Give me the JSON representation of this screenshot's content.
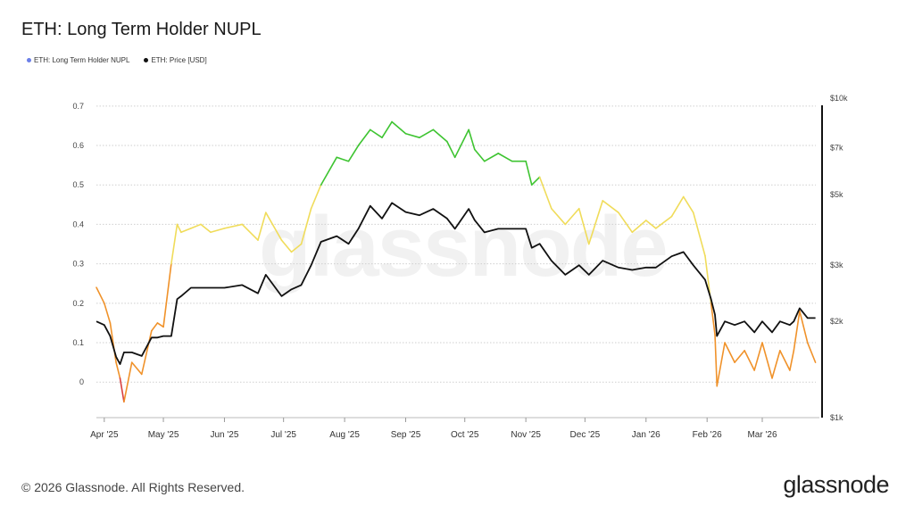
{
  "title": "ETH: Long Term Holder NUPL",
  "legend": {
    "nupl_label": "ETH: Long Term Holder NUPL",
    "price_label": "ETH: Price [USD]",
    "nupl_color": "#6b7fe8",
    "price_color": "#111111"
  },
  "watermark": "glassnode",
  "footer": "© 2026 Glassnode. All Rights Reserved.",
  "brand": "glassnode",
  "chart_data": {
    "type": "line",
    "title": "ETH: Long Term Holder NUPL",
    "x_ticks": [
      "Apr '25",
      "May '25",
      "Jun '25",
      "Jul '25",
      "Aug '25",
      "Sep '25",
      "Oct '25",
      "Nov '25",
      "Dec '25",
      "Jan '26",
      "Feb '26",
      "Mar '26"
    ],
    "x_tick_dates": [
      "2025-04-01",
      "2025-05-01",
      "2025-06-01",
      "2025-07-01",
      "2025-08-01",
      "2025-09-01",
      "2025-10-01",
      "2025-11-01",
      "2025-12-01",
      "2026-01-01",
      "2026-02-01",
      "2026-03-01"
    ],
    "x_range": [
      "2025-03-28",
      "2026-03-30"
    ],
    "left_axis": {
      "ticks": [
        "0",
        "0.1",
        "0.2",
        "0.3",
        "0.4",
        "0.5",
        "0.6",
        "0.7"
      ],
      "tick_values": [
        0,
        0.1,
        0.2,
        0.3,
        0.4,
        0.5,
        0.6,
        0.7
      ],
      "range": [
        -0.09,
        0.72
      ]
    },
    "right_axis": {
      "scale": "log",
      "ticks": [
        "$1k",
        "$2k",
        "$3k",
        "$5k",
        "$7k",
        "$10k"
      ],
      "tick_values": [
        1000,
        2000,
        3000,
        5000,
        7000,
        10000
      ],
      "range": [
        1000,
        10000
      ]
    },
    "grid": true,
    "legend_position": "top-left",
    "band_colors": {
      "below_0": "#d94040",
      "0_to_0.25": "#f0922a",
      "0.25_to_0.5": "#f0dc5a",
      "above_0.5": "#3ec431"
    },
    "series": [
      {
        "name": "ETH: Long Term Holder NUPL",
        "axis": "left",
        "x": [
          "2025-03-28",
          "2025-04-01",
          "2025-04-04",
          "2025-04-07",
          "2025-04-09",
          "2025-04-11",
          "2025-04-15",
          "2025-04-20",
          "2025-04-25",
          "2025-04-28",
          "2025-05-01",
          "2025-05-05",
          "2025-05-08",
          "2025-05-10",
          "2025-05-15",
          "2025-05-20",
          "2025-05-25",
          "2025-06-01",
          "2025-06-10",
          "2025-06-18",
          "2025-06-22",
          "2025-06-30",
          "2025-07-05",
          "2025-07-10",
          "2025-07-15",
          "2025-07-20",
          "2025-07-28",
          "2025-08-03",
          "2025-08-08",
          "2025-08-14",
          "2025-08-20",
          "2025-08-25",
          "2025-09-01",
          "2025-09-08",
          "2025-09-15",
          "2025-09-22",
          "2025-09-26",
          "2025-10-03",
          "2025-10-06",
          "2025-10-11",
          "2025-10-18",
          "2025-10-25",
          "2025-11-01",
          "2025-11-04",
          "2025-11-08",
          "2025-11-14",
          "2025-11-21",
          "2025-11-28",
          "2025-12-03",
          "2025-12-10",
          "2025-12-18",
          "2025-12-25",
          "2026-01-01",
          "2026-01-06",
          "2026-01-14",
          "2026-01-20",
          "2026-01-25",
          "2026-01-31",
          "2026-02-03",
          "2026-02-05",
          "2026-02-06",
          "2026-02-10",
          "2026-02-15",
          "2026-02-20",
          "2026-02-25",
          "2026-03-01",
          "2026-03-06",
          "2026-03-10",
          "2026-03-15",
          "2026-03-17",
          "2026-03-20",
          "2026-03-24",
          "2026-03-28"
        ],
        "values": [
          0.24,
          0.2,
          0.15,
          0.05,
          0.01,
          -0.05,
          0.05,
          0.02,
          0.13,
          0.15,
          0.14,
          0.3,
          0.4,
          0.38,
          0.39,
          0.4,
          0.38,
          0.39,
          0.4,
          0.36,
          0.43,
          0.36,
          0.33,
          0.35,
          0.44,
          0.5,
          0.57,
          0.56,
          0.6,
          0.64,
          0.62,
          0.66,
          0.63,
          0.62,
          0.64,
          0.61,
          0.57,
          0.64,
          0.59,
          0.56,
          0.58,
          0.56,
          0.56,
          0.5,
          0.52,
          0.44,
          0.4,
          0.44,
          0.35,
          0.46,
          0.43,
          0.38,
          0.41,
          0.39,
          0.42,
          0.47,
          0.43,
          0.32,
          0.2,
          0.12,
          -0.01,
          0.1,
          0.05,
          0.08,
          0.03,
          0.1,
          0.01,
          0.08,
          0.03,
          0.08,
          0.18,
          0.1,
          0.05
        ]
      },
      {
        "name": "ETH: Price [USD]",
        "axis": "right",
        "x": [
          "2025-03-28",
          "2025-04-01",
          "2025-04-04",
          "2025-04-07",
          "2025-04-09",
          "2025-04-11",
          "2025-04-15",
          "2025-04-20",
          "2025-04-25",
          "2025-04-28",
          "2025-05-01",
          "2025-05-05",
          "2025-05-08",
          "2025-05-10",
          "2025-05-15",
          "2025-05-20",
          "2025-05-25",
          "2025-06-01",
          "2025-06-10",
          "2025-06-18",
          "2025-06-22",
          "2025-06-30",
          "2025-07-05",
          "2025-07-10",
          "2025-07-15",
          "2025-07-20",
          "2025-07-28",
          "2025-08-03",
          "2025-08-08",
          "2025-08-14",
          "2025-08-20",
          "2025-08-25",
          "2025-09-01",
          "2025-09-08",
          "2025-09-15",
          "2025-09-22",
          "2025-09-26",
          "2025-10-03",
          "2025-10-06",
          "2025-10-11",
          "2025-10-18",
          "2025-10-25",
          "2025-11-01",
          "2025-11-04",
          "2025-11-08",
          "2025-11-14",
          "2025-11-21",
          "2025-11-28",
          "2025-12-03",
          "2025-12-10",
          "2025-12-18",
          "2025-12-25",
          "2026-01-01",
          "2026-01-06",
          "2026-01-14",
          "2026-01-20",
          "2026-01-25",
          "2026-01-31",
          "2026-02-03",
          "2026-02-05",
          "2026-02-06",
          "2026-02-10",
          "2026-02-15",
          "2026-02-20",
          "2026-02-25",
          "2026-03-01",
          "2026-03-06",
          "2026-03-10",
          "2026-03-15",
          "2026-03-17",
          "2026-03-20",
          "2026-03-24",
          "2026-03-28"
        ],
        "values": [
          2000,
          1950,
          1800,
          1550,
          1470,
          1600,
          1600,
          1560,
          1780,
          1780,
          1800,
          1800,
          2350,
          2400,
          2550,
          2550,
          2550,
          2550,
          2600,
          2450,
          2800,
          2400,
          2520,
          2600,
          3000,
          3550,
          3700,
          3500,
          3900,
          4600,
          4200,
          4700,
          4400,
          4300,
          4500,
          4200,
          3900,
          4500,
          4150,
          3800,
          3900,
          3900,
          3900,
          3400,
          3500,
          3100,
          2800,
          3000,
          2800,
          3100,
          2950,
          2900,
          2950,
          2950,
          3200,
          3300,
          3000,
          2700,
          2350,
          2100,
          1800,
          2000,
          1950,
          2000,
          1850,
          2000,
          1850,
          2000,
          1950,
          2000,
          2200,
          2050,
          2050
        ]
      }
    ]
  }
}
